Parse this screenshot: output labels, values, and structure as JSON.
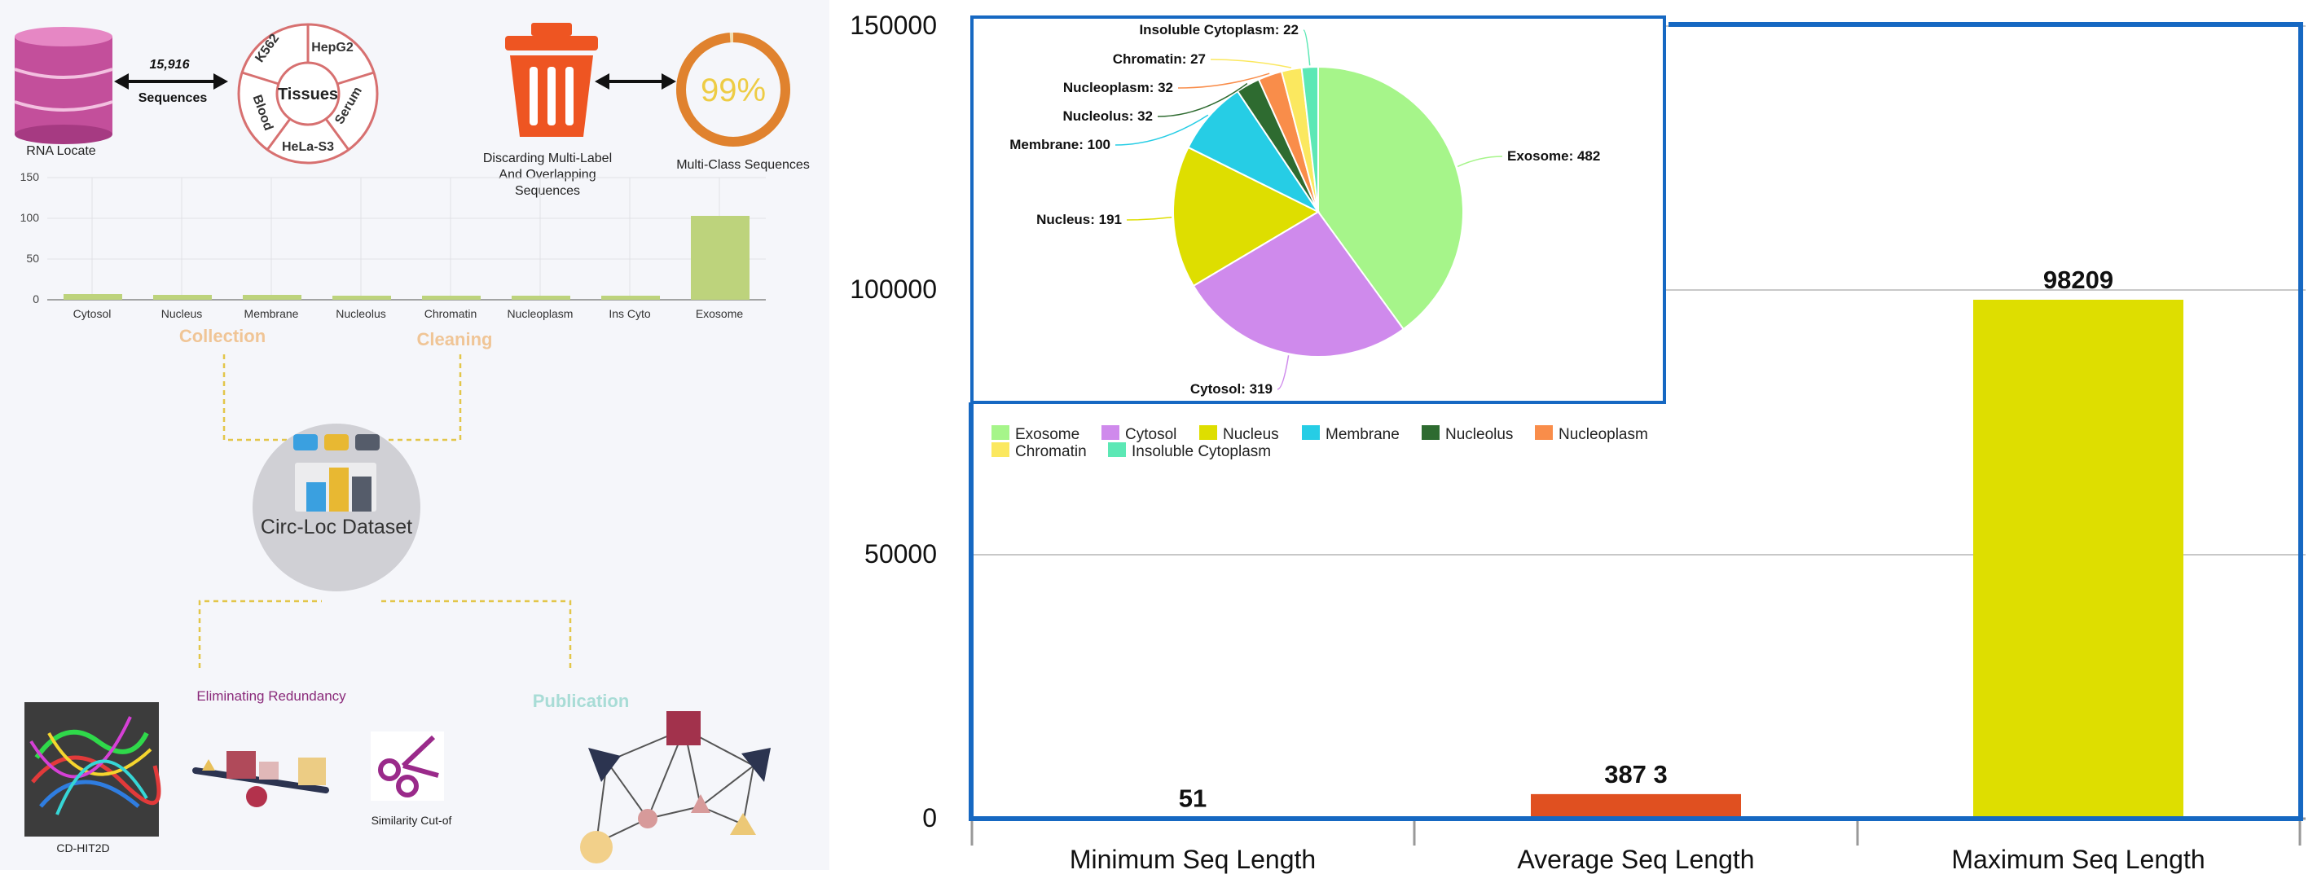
{
  "pipeline": {
    "rna_locate_label": "RNA Locate",
    "sequences_count": "15,916",
    "sequences_label": "Sequences",
    "tissues": {
      "center": "Tissues",
      "k562": "K562",
      "hepg2": "HepG2",
      "serum": "Serum",
      "hela": "HeLa-S3",
      "blood": "Blood"
    },
    "discard_label_lines": [
      "Discarding Multi-Label",
      "And Overlapping",
      "Sequences"
    ],
    "multiclass_percent": "99%",
    "multiclass_label": "Multi-Class Sequences",
    "mini_chart": {
      "yticks": [
        "150",
        "100",
        "50",
        "0"
      ],
      "categories": [
        "Cytosol",
        "Nucleus",
        "Membrane",
        "Nucleolus",
        "Chromatin",
        "Nucleoplasm",
        "Ins Cyto",
        "Exosome"
      ]
    },
    "collection_label": "Collection",
    "cleaning_label": "Cleaning",
    "dataset_label": "Circ-Loc Dataset",
    "eliminating_label": "Eliminating Redundancy",
    "publication_label": "Publication",
    "cdhit_label": "CD-HIT2D",
    "similarity_label": "Similarity Cut-of"
  },
  "chart_data": [
    {
      "type": "bar",
      "categories": [
        "Minimum Seq Length",
        "Average Seq Length",
        "Maximum Seq Length"
      ],
      "values": [
        51,
        3873,
        98209
      ],
      "value_labels": [
        "51",
        "387 3",
        "98209"
      ],
      "colors": [
        "#e05020",
        "#e05020",
        "#dede00"
      ],
      "yticks": [
        "150000",
        "100000",
        "50000",
        "0"
      ],
      "ylim": [
        0,
        150000
      ],
      "grid": true
    },
    {
      "type": "pie",
      "slices": [
        {
          "label": "Exosome",
          "value": 482,
          "text": "Exosome: 482",
          "color": "#a6f58a"
        },
        {
          "label": "Cytosol",
          "value": 319,
          "text": "Cytosol: 319",
          "color": "#cf8aec"
        },
        {
          "label": "Nucleus",
          "value": 191,
          "text": "Nucleus: 191",
          "color": "#dede00"
        },
        {
          "label": "Membrane",
          "value": 100,
          "text": "Membrane: 100",
          "color": "#26cde5"
        },
        {
          "label": "Nucleolus",
          "value": 32,
          "text": "Nucleolus: 32",
          "color": "#2e6b30"
        },
        {
          "label": "Nucleoplasm",
          "value": 32,
          "text": "Nucleoplasm: 32",
          "color": "#f98d4a"
        },
        {
          "label": "Chromatin",
          "value": 27,
          "text": "Chromatin: 27",
          "color": "#fbe85f"
        },
        {
          "label": "Insoluble Cytoplasm",
          "value": 22,
          "text": "Insoluble Cytoplasm: 22",
          "color": "#5ce8b5"
        }
      ],
      "legend": "bottom-left"
    }
  ]
}
